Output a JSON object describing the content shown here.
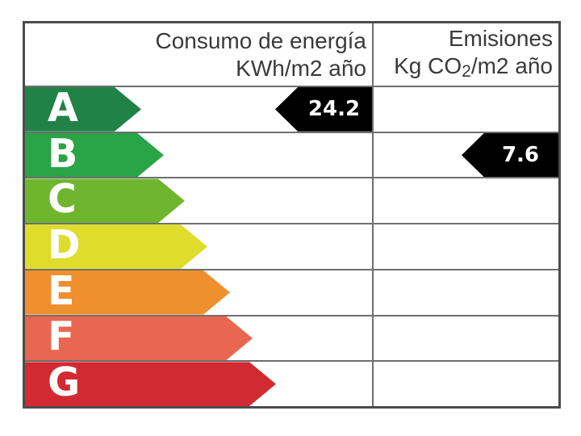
{
  "chart_data": {
    "type": "table",
    "description_visible_text_only": "Energy rating ladder A-G with two value columns",
    "columns": [
      {
        "header_line1": "Consumo de energía",
        "header_line2": "KWh/m2 año",
        "value": "24.2",
        "value_rating_row": "A"
      },
      {
        "header_line1": "Emisiones",
        "header_line2": "Kg CO2/m2 año",
        "header_line2_parts": [
          "Kg CO",
          "2",
          "/m2 año"
        ],
        "value": "7.6",
        "value_rating_row": "B"
      }
    ],
    "categories": [
      "A",
      "B",
      "C",
      "D",
      "E",
      "F",
      "G"
    ],
    "category_colors": [
      "#218247",
      "#29a447",
      "#6fb62e",
      "#dfdc2b",
      "#ef8f2e",
      "#e96750",
      "#d22a32"
    ],
    "value_marker_color": "#000000",
    "legend_position": "none",
    "grid": "table borders"
  }
}
